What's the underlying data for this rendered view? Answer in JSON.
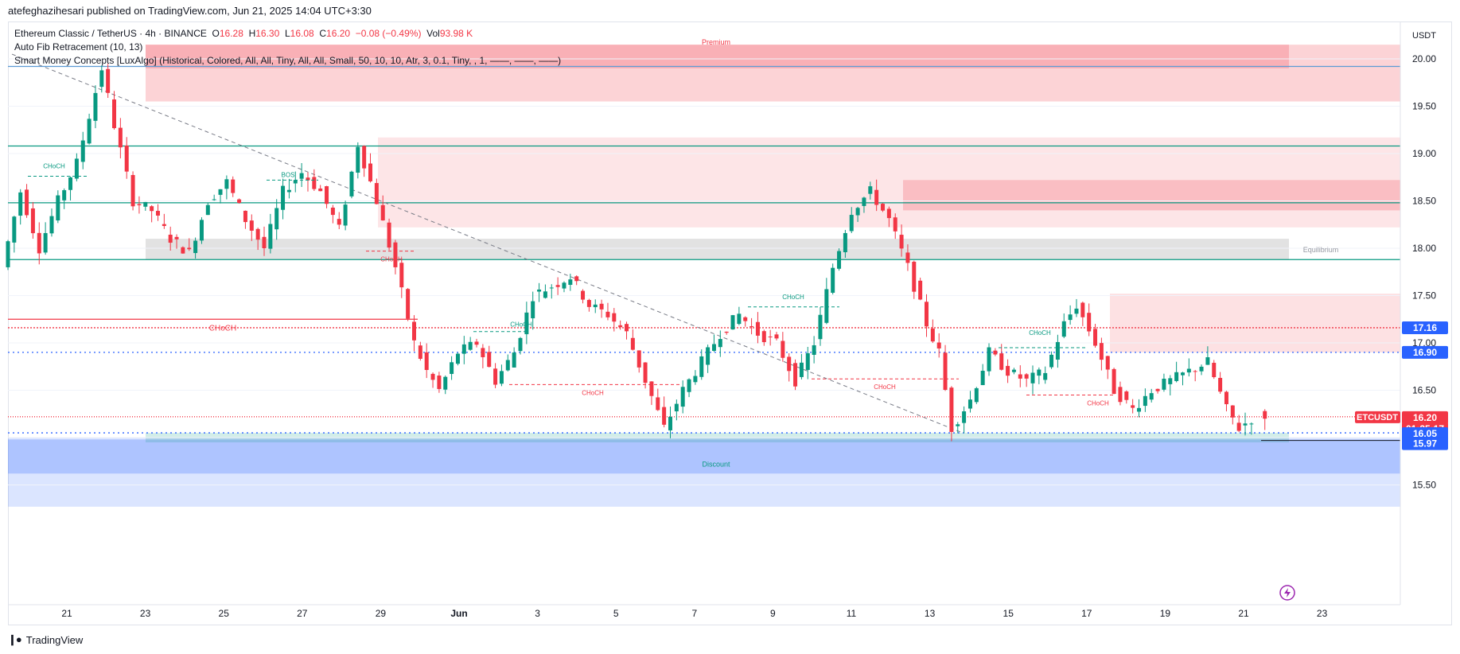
{
  "header": {
    "publish_line": "atefeghazihesari published on TradingView.com, Jun 21, 2025 14:04 UTC+3:30"
  },
  "legend": {
    "symbol": "Ethereum Classic / TetherUS · 4h · BINANCE",
    "o_label": "O",
    "o_value": "16.28",
    "h_label": "H",
    "h_value": "16.30",
    "l_label": "L",
    "l_value": "16.08",
    "c_label": "C",
    "c_value": "16.20",
    "change": "−0.08 (−0.49%)",
    "vol_label": "Vol",
    "vol_value": "93.98 K",
    "indicator1": "Auto Fib Retracement (10, 13)",
    "indicator2": "Smart Money Concepts [LuxAlgo] (Historical, Colored, All, All, Tiny, All, All, Small, 50, 10, 10, Atr, 3, 0.1, Tiny, , 1, ——, ——, ——)"
  },
  "axis": {
    "currency": "USDT",
    "price_ticks": [
      "20.00",
      "19.50",
      "19.00",
      "18.50",
      "18.00",
      "17.50",
      "17.00",
      "16.50",
      "16.00",
      "15.50"
    ],
    "date_ticks": [
      "21",
      "23",
      "25",
      "27",
      "29",
      "Jun",
      "3",
      "5",
      "7",
      "9",
      "11",
      "13",
      "15",
      "17",
      "19",
      "21",
      "23"
    ]
  },
  "price_labels": {
    "level_a": "17.16",
    "level_b": "16.90",
    "symbol_tag": "ETCUSDT",
    "last_price": "16.20",
    "countdown": "01:25:17",
    "level_c": "16.05",
    "level_d": "15.97"
  },
  "zone_labels": {
    "premium": "Premium",
    "equilibrium": "Equilibrium",
    "discount": "Discount"
  },
  "structure_labels": {
    "choch": "CHoCH",
    "bos": "BOS"
  },
  "colors": {
    "up": "#089981",
    "down": "#f23645",
    "blue_level": "#2962ff",
    "premium_zone": "#f23645",
    "discount_zone": "#2962ff",
    "equilibrium_zone": "#9e9e9e"
  },
  "footer": {
    "brand": "TradingView"
  },
  "chart_data": {
    "type": "candlestick",
    "title": "Ethereum Classic / TetherUS · 4h · BINANCE",
    "ylabel": "USDT",
    "ylim": [
      15.1,
      20.3
    ],
    "x": [
      "21",
      "23",
      "25",
      "27",
      "29",
      "Jun",
      "3",
      "5",
      "7",
      "9",
      "11",
      "13",
      "15",
      "17",
      "19",
      "21",
      "23"
    ],
    "last": {
      "open": 16.28,
      "high": 16.3,
      "low": 16.08,
      "close": 16.2
    },
    "horizontal_levels": [
      17.16,
      16.9,
      16.05,
      15.97
    ],
    "path": [
      [
        0,
        17.8
      ],
      [
        3,
        18.6
      ],
      [
        6,
        18.0
      ],
      [
        9,
        18.5
      ],
      [
        12,
        18.9
      ],
      [
        16,
        19.9
      ],
      [
        18,
        19.3
      ],
      [
        21,
        18.5
      ],
      [
        24,
        18.4
      ],
      [
        27,
        18.1
      ],
      [
        30,
        17.95
      ],
      [
        33,
        18.5
      ],
      [
        36,
        18.7
      ],
      [
        39,
        18.3
      ],
      [
        42,
        18.0
      ],
      [
        45,
        18.6
      ],
      [
        48,
        18.8
      ],
      [
        51,
        18.6
      ],
      [
        54,
        18.2
      ],
      [
        57,
        19.1
      ],
      [
        60,
        18.5
      ],
      [
        63,
        17.8
      ],
      [
        66,
        17.0
      ],
      [
        68,
        16.7
      ],
      [
        70,
        16.5
      ],
      [
        73,
        16.9
      ],
      [
        76,
        17.0
      ],
      [
        79,
        16.6
      ],
      [
        82,
        16.9
      ],
      [
        85,
        17.5
      ],
      [
        88,
        17.6
      ],
      [
        91,
        17.7
      ],
      [
        94,
        17.4
      ],
      [
        97,
        17.3
      ],
      [
        100,
        17.1
      ],
      [
        103,
        16.6
      ],
      [
        106,
        16.1
      ],
      [
        109,
        16.5
      ],
      [
        112,
        16.8
      ],
      [
        115,
        17.1
      ],
      [
        118,
        17.3
      ],
      [
        121,
        17.1
      ],
      [
        124,
        17.0
      ],
      [
        127,
        16.6
      ],
      [
        130,
        17.0
      ],
      [
        133,
        17.8
      ],
      [
        136,
        18.4
      ],
      [
        139,
        18.6
      ],
      [
        142,
        18.3
      ],
      [
        145,
        17.8
      ],
      [
        148,
        17.2
      ],
      [
        150,
        16.9
      ],
      [
        152,
        16.1
      ],
      [
        155,
        16.4
      ],
      [
        158,
        16.9
      ],
      [
        161,
        16.7
      ],
      [
        164,
        16.6
      ],
      [
        167,
        16.7
      ],
      [
        170,
        17.2
      ],
      [
        172,
        17.4
      ],
      [
        175,
        17.0
      ],
      [
        178,
        16.5
      ],
      [
        181,
        16.3
      ],
      [
        184,
        16.5
      ],
      [
        187,
        16.6
      ],
      [
        190,
        16.7
      ],
      [
        193,
        16.8
      ],
      [
        196,
        16.3
      ],
      [
        198,
        16.1
      ],
      [
        200,
        16.2
      ]
    ]
  }
}
